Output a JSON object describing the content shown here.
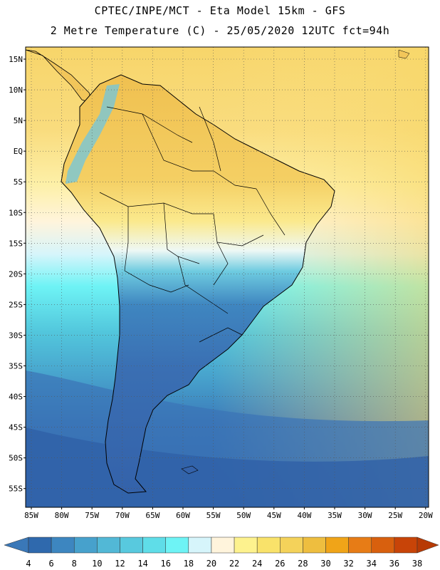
{
  "header": {
    "line1": "CPTEC/INPE/MCT -  Eta Model 15km - GFS",
    "line2": "2 Metre Temperature (C) - 25/05/2020 12UTC fct=94h"
  },
  "axes": {
    "lat_labels": [
      "15N",
      "10N",
      "5N",
      "EQ",
      "5S",
      "10S",
      "15S",
      "20S",
      "25S",
      "30S",
      "35S",
      "40S",
      "45S",
      "50S",
      "55S"
    ],
    "lon_labels": [
      "85W",
      "80W",
      "75W",
      "70W",
      "65W",
      "60W",
      "55W",
      "50W",
      "45W",
      "40W",
      "35W",
      "30W",
      "25W",
      "20W"
    ]
  },
  "colorbar": {
    "labels": [
      "4",
      "6",
      "8",
      "10",
      "12",
      "14",
      "16",
      "18",
      "20",
      "22",
      "24",
      "26",
      "28",
      "30",
      "32",
      "34",
      "36",
      "38"
    ],
    "colors": [
      "#3a78b8",
      "#2f69ad",
      "#3d86c0",
      "#47a1cc",
      "#52b8d6",
      "#58c9de",
      "#5fdde8",
      "#6ef3f5",
      "#d6f5fb",
      "#fff4dc",
      "#fdf28e",
      "#f9e26a",
      "#f4d25a",
      "#eebe3f",
      "#f0a418",
      "#e77c16",
      "#d8600e",
      "#c84408",
      "#b73a05"
    ]
  },
  "map_style": {
    "ocean_cold": "#2f5fa6",
    "ocean_mid": "#4fc4dc",
    "ocean_warm": "#fcd77a",
    "land_hot": "#f1c24c",
    "land_cold": "#3d6bb0",
    "border_color": "#000000"
  }
}
